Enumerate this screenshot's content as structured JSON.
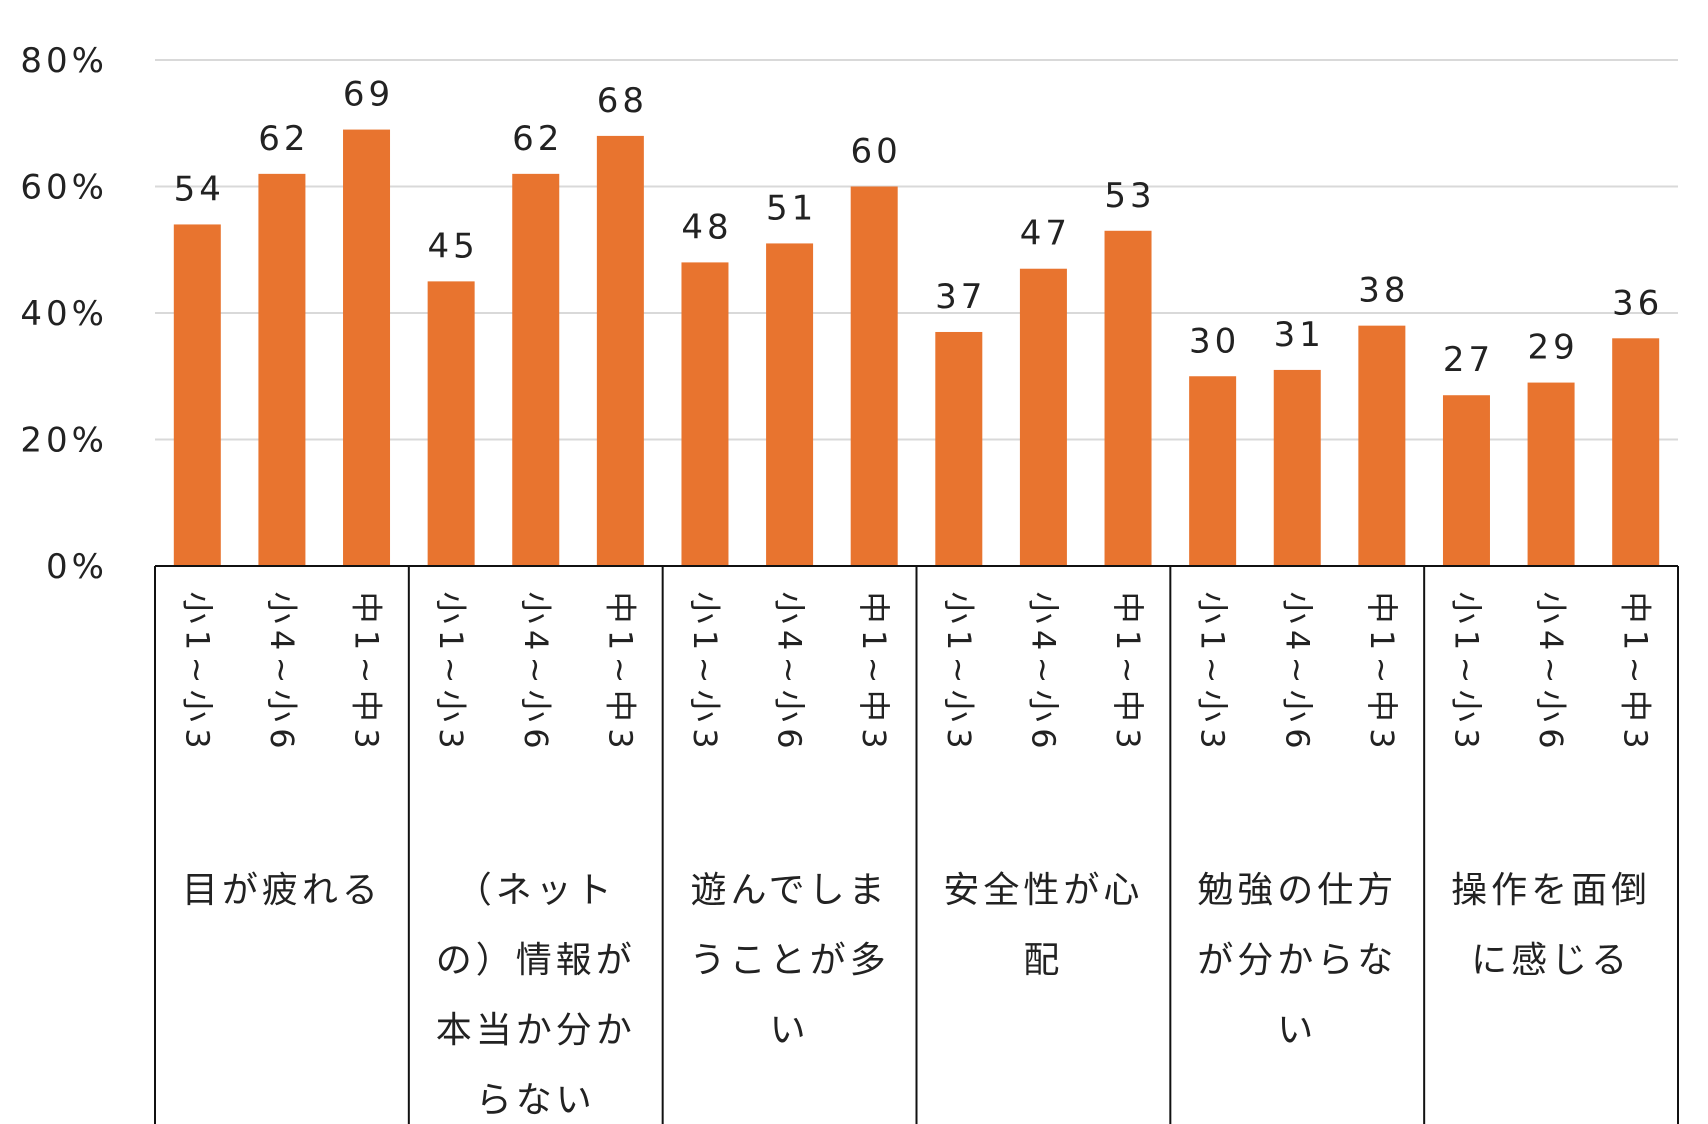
{
  "chart_data": {
    "type": "bar",
    "title": "",
    "xlabel": "",
    "ylabel": "",
    "ylim": [
      0,
      80
    ],
    "yticks": [
      "0%",
      "20%",
      "40%",
      "60%",
      "80%"
    ],
    "grid": true,
    "bar_color": "#E8742F",
    "groups": [
      {
        "label": "目が疲れる",
        "label_lines": [
          "目が疲れる"
        ],
        "bars": [
          {
            "sub": "小1~小3",
            "value": 54
          },
          {
            "sub": "小4~小6",
            "value": 62
          },
          {
            "sub": "中1~中3",
            "value": 69
          }
        ]
      },
      {
        "label": "（ネットの）情報が本当か分からない",
        "label_lines": [
          "（ネット",
          "の）情報が",
          "本当か分か",
          "らない"
        ],
        "bars": [
          {
            "sub": "小1~小3",
            "value": 45
          },
          {
            "sub": "小4~小6",
            "value": 62
          },
          {
            "sub": "中1~中3",
            "value": 68
          }
        ]
      },
      {
        "label": "遊んでしまうことが多い",
        "label_lines": [
          "遊んでしま",
          "うことが多",
          "い"
        ],
        "bars": [
          {
            "sub": "小1~小3",
            "value": 48
          },
          {
            "sub": "小4~小6",
            "value": 51
          },
          {
            "sub": "中1~中3",
            "value": 60
          }
        ]
      },
      {
        "label": "安全性が心配",
        "label_lines": [
          "安全性が心",
          "配"
        ],
        "bars": [
          {
            "sub": "小1~小3",
            "value": 37
          },
          {
            "sub": "小4~小6",
            "value": 47
          },
          {
            "sub": "中1~中3",
            "value": 53
          }
        ]
      },
      {
        "label": "勉強の仕方が分からない",
        "label_lines": [
          "勉強の仕方",
          "が分からな",
          "い"
        ],
        "bars": [
          {
            "sub": "小1~小3",
            "value": 30
          },
          {
            "sub": "小4~小6",
            "value": 31
          },
          {
            "sub": "中1~中3",
            "value": 38
          }
        ]
      },
      {
        "label": "操作を面倒に感じる",
        "label_lines": [
          "操作を面倒",
          "に感じる"
        ],
        "bars": [
          {
            "sub": "小1~小3",
            "value": 27
          },
          {
            "sub": "小4~小6",
            "value": 29
          },
          {
            "sub": "中1~中3",
            "value": 36
          }
        ]
      }
    ]
  }
}
